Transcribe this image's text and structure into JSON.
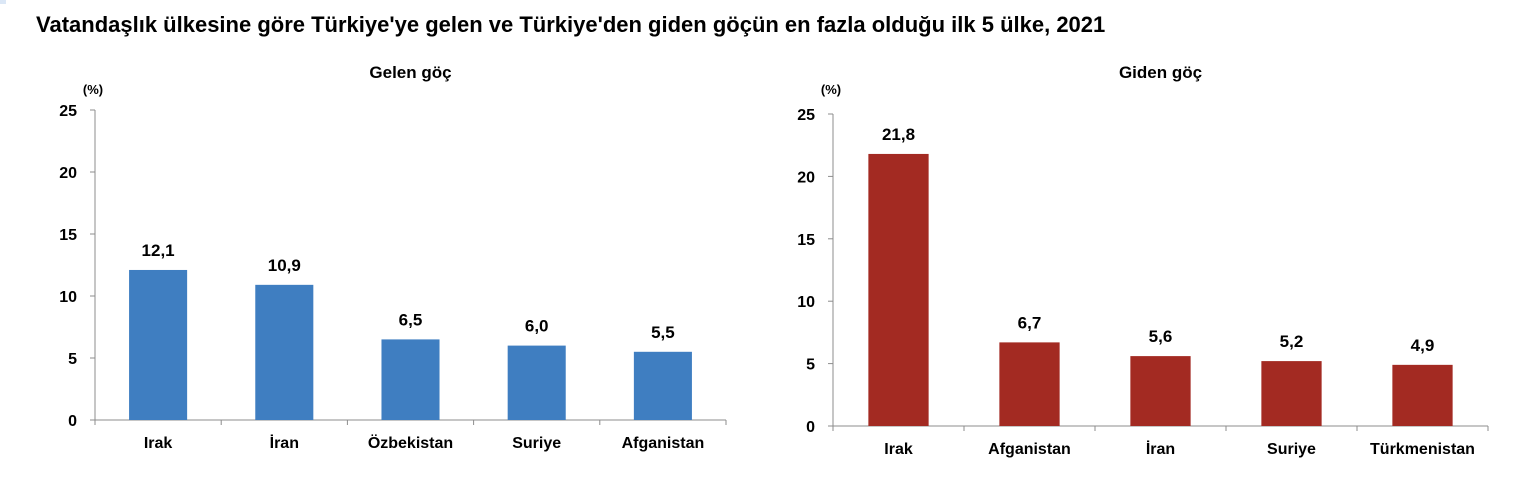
{
  "title": "Vatandaşlık ülkesine göre Türkiye'ye gelen ve Türkiye'den giden göçün en fazla olduğu ilk 5 ülke, 2021",
  "chart_data": [
    {
      "type": "bar",
      "title": "Gelen göç",
      "unit_label": "(%)",
      "categories": [
        "Irak",
        "İran",
        "Özbekistan",
        "Suriye",
        "Afganistan"
      ],
      "values": [
        12.1,
        10.9,
        6.5,
        6.0,
        5.5
      ],
      "value_labels": [
        "12,1",
        "10,9",
        "6,5",
        "6,0",
        "5,5"
      ],
      "y_ticks": [
        "0",
        "5",
        "10",
        "15",
        "20",
        "25"
      ],
      "ylim": [
        0,
        25
      ],
      "bar_color": "#3f7ec1",
      "grid": false,
      "legend": "none"
    },
    {
      "type": "bar",
      "title": "Giden göç",
      "unit_label": "(%)",
      "categories": [
        "Irak",
        "Afganistan",
        "İran",
        "Suriye",
        "Türkmenistan"
      ],
      "values": [
        21.8,
        6.7,
        5.6,
        5.2,
        4.9
      ],
      "value_labels": [
        "21,8",
        "6,7",
        "5,6",
        "5,2",
        "4,9"
      ],
      "y_ticks": [
        "0",
        "5",
        "10",
        "15",
        "20",
        "25"
      ],
      "ylim": [
        0,
        25
      ],
      "bar_color": "#a32a22",
      "grid": false,
      "legend": "none"
    }
  ]
}
